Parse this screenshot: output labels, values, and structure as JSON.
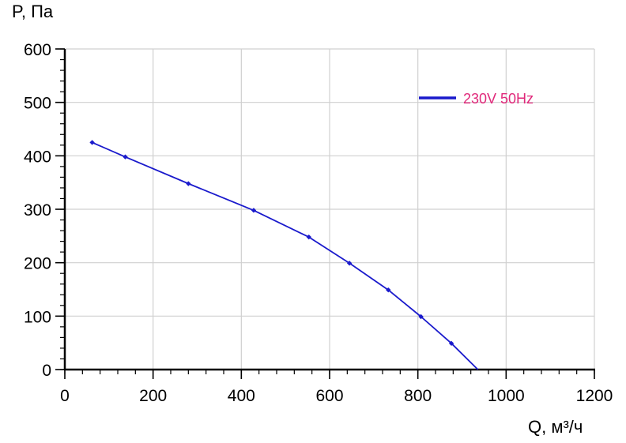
{
  "chart_data": {
    "type": "line",
    "xlabel": "Q, м³/ч",
    "ylabel": "P, Па",
    "xlim": [
      0,
      1200
    ],
    "ylim": [
      0,
      600
    ],
    "x_ticks": [
      0,
      200,
      400,
      600,
      800,
      1000,
      1200
    ],
    "y_ticks": [
      0,
      100,
      200,
      300,
      400,
      500,
      600
    ],
    "grid": true,
    "legend_position": "top-right",
    "series": [
      {
        "name": "230V 50Hz",
        "color": "#1a1acc",
        "label_color": "#e0287a",
        "x": [
          62,
          137,
          280,
          428,
          553,
          645,
          733,
          807,
          876,
          936
        ],
        "y": [
          425,
          398,
          348,
          298,
          248,
          199,
          149,
          99,
          49,
          0
        ],
        "markers": [
          true,
          true,
          true,
          true,
          true,
          true,
          true,
          true,
          true,
          false
        ]
      }
    ]
  }
}
